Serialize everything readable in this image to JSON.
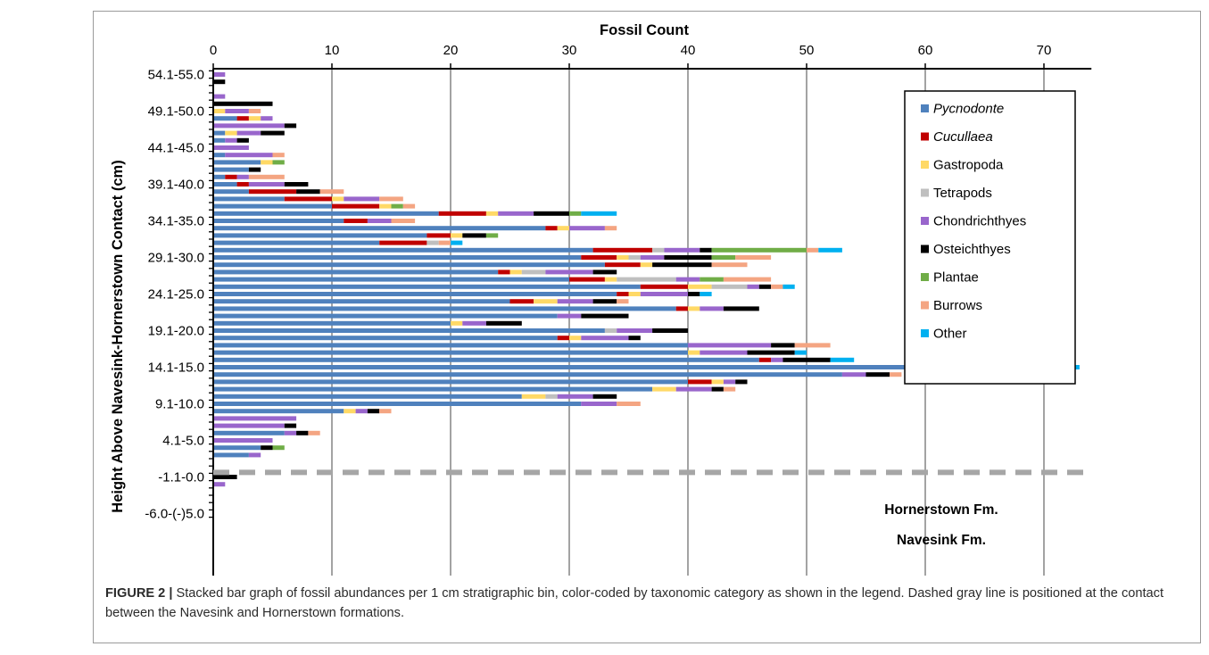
{
  "figure": {
    "caption_label": "FIGURE 2 |",
    "caption_text": " Stacked bar graph of fossil abundances per 1 cm stratigraphic bin, color-coded by taxonomic category as shown in the legend. Dashed gray line is positioned at the contact between the Navesink and Hornerstown formations."
  },
  "chart_data": {
    "type": "bar",
    "orientation": "horizontal",
    "stacked": true,
    "title": "Fossil Count",
    "xlabel": "Fossil Count",
    "ylabel": "Height Above Navesink-Hornerstown Contact (cm)",
    "xlim": [
      0,
      74
    ],
    "x_ticks": [
      0,
      10,
      20,
      30,
      40,
      50,
      60,
      70
    ],
    "x_axis_position": "top",
    "grid": "vertical",
    "legend_position": "top-right",
    "y_tick_labels": [
      "54.1-55.0",
      "49.1-50.0",
      "44.1-45.0",
      "39.1-40.0",
      "34.1-35.0",
      "29.1-30.0",
      "24.1-25.0",
      "19.1-20.0",
      "14.1-15.0",
      "9.1-10.0",
      "4.1-5.0",
      "-1.1-0.0",
      "-6.0-(-)5.0"
    ],
    "contact_line": {
      "top_label": "Hornerstown Fm.",
      "bottom_label": "Navesink Fm.",
      "color": "#a6a6a6"
    },
    "series": [
      {
        "name": "Pycnodonte",
        "italic": true,
        "color": "#4f81bd"
      },
      {
        "name": "Cucullaea",
        "italic": true,
        "color": "#c00000"
      },
      {
        "name": "Gastropoda",
        "italic": false,
        "color": "#ffd966"
      },
      {
        "name": "Tetrapods",
        "italic": false,
        "color": "#bfbfbf"
      },
      {
        "name": "Chondrichthyes",
        "italic": false,
        "color": "#9966cc"
      },
      {
        "name": "Osteichthyes",
        "italic": false,
        "color": "#000000"
      },
      {
        "name": "Plantae",
        "italic": false,
        "color": "#70ad47"
      },
      {
        "name": "Burrows",
        "italic": false,
        "color": "#f4a582"
      },
      {
        "name": "Other",
        "italic": false,
        "color": "#00b0f0"
      }
    ],
    "bins": [
      {
        "bin": 55,
        "values": [
          0,
          0,
          0,
          0,
          1,
          0,
          0,
          0,
          0
        ]
      },
      {
        "bin": 54,
        "values": [
          0,
          0,
          0,
          0,
          0,
          1,
          0,
          0,
          0
        ]
      },
      {
        "bin": 53,
        "values": [
          0,
          0,
          0,
          0,
          0,
          0,
          0,
          0,
          0
        ]
      },
      {
        "bin": 52,
        "values": [
          0,
          0,
          0,
          0,
          1,
          0,
          0,
          0,
          0
        ]
      },
      {
        "bin": 51,
        "values": [
          0,
          0,
          0,
          0,
          0,
          5,
          0,
          0,
          0
        ]
      },
      {
        "bin": 50,
        "values": [
          0,
          0,
          1,
          0,
          2,
          0,
          0,
          1,
          0
        ]
      },
      {
        "bin": 49,
        "values": [
          2,
          1,
          1,
          0,
          1,
          0,
          0,
          0,
          0
        ]
      },
      {
        "bin": 48,
        "values": [
          0,
          0,
          0,
          0,
          6,
          1,
          0,
          0,
          0
        ]
      },
      {
        "bin": 47,
        "values": [
          1,
          0,
          1,
          0,
          2,
          2,
          0,
          0,
          0
        ]
      },
      {
        "bin": 46,
        "values": [
          1,
          0,
          0,
          0,
          1,
          1,
          0,
          0,
          0
        ]
      },
      {
        "bin": 45,
        "values": [
          0,
          0,
          0,
          0,
          3,
          0,
          0,
          0,
          0
        ]
      },
      {
        "bin": 44,
        "values": [
          1,
          0,
          0,
          0,
          4,
          0,
          0,
          1,
          0
        ]
      },
      {
        "bin": 43,
        "values": [
          4,
          0,
          1,
          0,
          0,
          0,
          1,
          0,
          0
        ]
      },
      {
        "bin": 42,
        "values": [
          3,
          0,
          0,
          0,
          0,
          1,
          0,
          0,
          0
        ]
      },
      {
        "bin": 41,
        "values": [
          1,
          1,
          0,
          0,
          1,
          0,
          0,
          3,
          0
        ]
      },
      {
        "bin": 40,
        "values": [
          2,
          1,
          0,
          0,
          3,
          2,
          0,
          0,
          0
        ]
      },
      {
        "bin": 39,
        "values": [
          3,
          4,
          0,
          0,
          0,
          2,
          0,
          2,
          0
        ]
      },
      {
        "bin": 38,
        "values": [
          6,
          4,
          1,
          0,
          3,
          0,
          0,
          2,
          0
        ]
      },
      {
        "bin": 37,
        "values": [
          10,
          4,
          1,
          0,
          0,
          0,
          1,
          1,
          0
        ]
      },
      {
        "bin": 36,
        "values": [
          19,
          4,
          1,
          0,
          3,
          3,
          1,
          0,
          3
        ]
      },
      {
        "bin": 35,
        "values": [
          11,
          2,
          0,
          0,
          2,
          0,
          0,
          2,
          0
        ]
      },
      {
        "bin": 34,
        "values": [
          28,
          1,
          1,
          0,
          3,
          0,
          0,
          1,
          0
        ]
      },
      {
        "bin": 33,
        "values": [
          18,
          2,
          1,
          0,
          0,
          2,
          1,
          0,
          0
        ]
      },
      {
        "bin": 32,
        "values": [
          14,
          4,
          0,
          1,
          0,
          0,
          0,
          1,
          1
        ]
      },
      {
        "bin": 31,
        "values": [
          32,
          5,
          0,
          1,
          3,
          1,
          8,
          1,
          2
        ]
      },
      {
        "bin": 30,
        "values": [
          31,
          3,
          1,
          1,
          2,
          4,
          2,
          3,
          0
        ]
      },
      {
        "bin": 29,
        "values": [
          33,
          3,
          1,
          0,
          0,
          5,
          0,
          3,
          0
        ]
      },
      {
        "bin": 28,
        "values": [
          24,
          1,
          1,
          2,
          4,
          2,
          0,
          0,
          0
        ]
      },
      {
        "bin": 27,
        "values": [
          30,
          3,
          1,
          5,
          2,
          0,
          2,
          4,
          0
        ]
      },
      {
        "bin": 26,
        "values": [
          36,
          4,
          2,
          3,
          1,
          1,
          0,
          1,
          1
        ]
      },
      {
        "bin": 25,
        "values": [
          34,
          1,
          1,
          0,
          4,
          1,
          0,
          0,
          1
        ]
      },
      {
        "bin": 24,
        "values": [
          25,
          2,
          2,
          0,
          3,
          2,
          0,
          1,
          0
        ]
      },
      {
        "bin": 23,
        "values": [
          39,
          1,
          1,
          0,
          2,
          3,
          0,
          0,
          0
        ]
      },
      {
        "bin": 22,
        "values": [
          29,
          0,
          0,
          0,
          2,
          4,
          0,
          0,
          0
        ]
      },
      {
        "bin": 21,
        "values": [
          20,
          0,
          1,
          0,
          2,
          3,
          0,
          0,
          0
        ]
      },
      {
        "bin": 20,
        "values": [
          33,
          0,
          0,
          1,
          3,
          3,
          0,
          0,
          0
        ]
      },
      {
        "bin": 19,
        "values": [
          29,
          1,
          1,
          0,
          4,
          1,
          0,
          0,
          0
        ]
      },
      {
        "bin": 18,
        "values": [
          40,
          0,
          0,
          0,
          7,
          2,
          0,
          3,
          0
        ]
      },
      {
        "bin": 17,
        "values": [
          40,
          0,
          1,
          0,
          4,
          4,
          0,
          0,
          1
        ]
      },
      {
        "bin": 16,
        "values": [
          46,
          1,
          0,
          0,
          1,
          4,
          0,
          0,
          2
        ]
      },
      {
        "bin": 15,
        "values": [
          67,
          1,
          0,
          0,
          2,
          2,
          0,
          0,
          1
        ]
      },
      {
        "bin": 14,
        "values": [
          53,
          0,
          0,
          0,
          2,
          2,
          0,
          1,
          0
        ]
      },
      {
        "bin": 13,
        "values": [
          40,
          2,
          1,
          0,
          1,
          1,
          0,
          0,
          0
        ]
      },
      {
        "bin": 12,
        "values": [
          37,
          0,
          2,
          0,
          3,
          1,
          0,
          1,
          0
        ]
      },
      {
        "bin": 11,
        "values": [
          26,
          0,
          2,
          1,
          3,
          2,
          0,
          0,
          0
        ]
      },
      {
        "bin": 10,
        "values": [
          31,
          0,
          0,
          0,
          3,
          0,
          0,
          2,
          0
        ]
      },
      {
        "bin": 9,
        "values": [
          11,
          0,
          1,
          0,
          1,
          1,
          0,
          1,
          0
        ]
      },
      {
        "bin": 8,
        "values": [
          0,
          0,
          0,
          0,
          7,
          0,
          0,
          0,
          0
        ]
      },
      {
        "bin": 7,
        "values": [
          0,
          0,
          0,
          0,
          6,
          1,
          0,
          0,
          0
        ]
      },
      {
        "bin": 6,
        "values": [
          6,
          0,
          0,
          0,
          1,
          1,
          0,
          1,
          0
        ]
      },
      {
        "bin": 5,
        "values": [
          0,
          0,
          0,
          0,
          5,
          0,
          0,
          0,
          0
        ]
      },
      {
        "bin": 4,
        "values": [
          4,
          0,
          0,
          0,
          0,
          1,
          1,
          0,
          0
        ]
      },
      {
        "bin": 3,
        "values": [
          3,
          0,
          0,
          0,
          1,
          0,
          0,
          0,
          0
        ]
      },
      {
        "bin": 2,
        "values": [
          0,
          0,
          0,
          0,
          0,
          0,
          0,
          0,
          0
        ]
      },
      {
        "bin": 1,
        "values": [
          0,
          0,
          0,
          0,
          0,
          0,
          0,
          0,
          0
        ]
      },
      {
        "bin": 0,
        "values": [
          0,
          0,
          0,
          0,
          0,
          2,
          0,
          0,
          0
        ]
      },
      {
        "bin": -1,
        "values": [
          0,
          0,
          0,
          0,
          1,
          0,
          0,
          0,
          0
        ]
      },
      {
        "bin": -2,
        "values": [
          0,
          0,
          0,
          0,
          0,
          0,
          0,
          0,
          0
        ]
      },
      {
        "bin": -3,
        "values": [
          0,
          0,
          0,
          0,
          0,
          0,
          0,
          0,
          0
        ]
      },
      {
        "bin": -4,
        "values": [
          0,
          0,
          0,
          0,
          0,
          0,
          0,
          0,
          0
        ]
      },
      {
        "bin": -5,
        "values": [
          0,
          0,
          0,
          0,
          0,
          0,
          0,
          0,
          0
        ]
      }
    ]
  }
}
